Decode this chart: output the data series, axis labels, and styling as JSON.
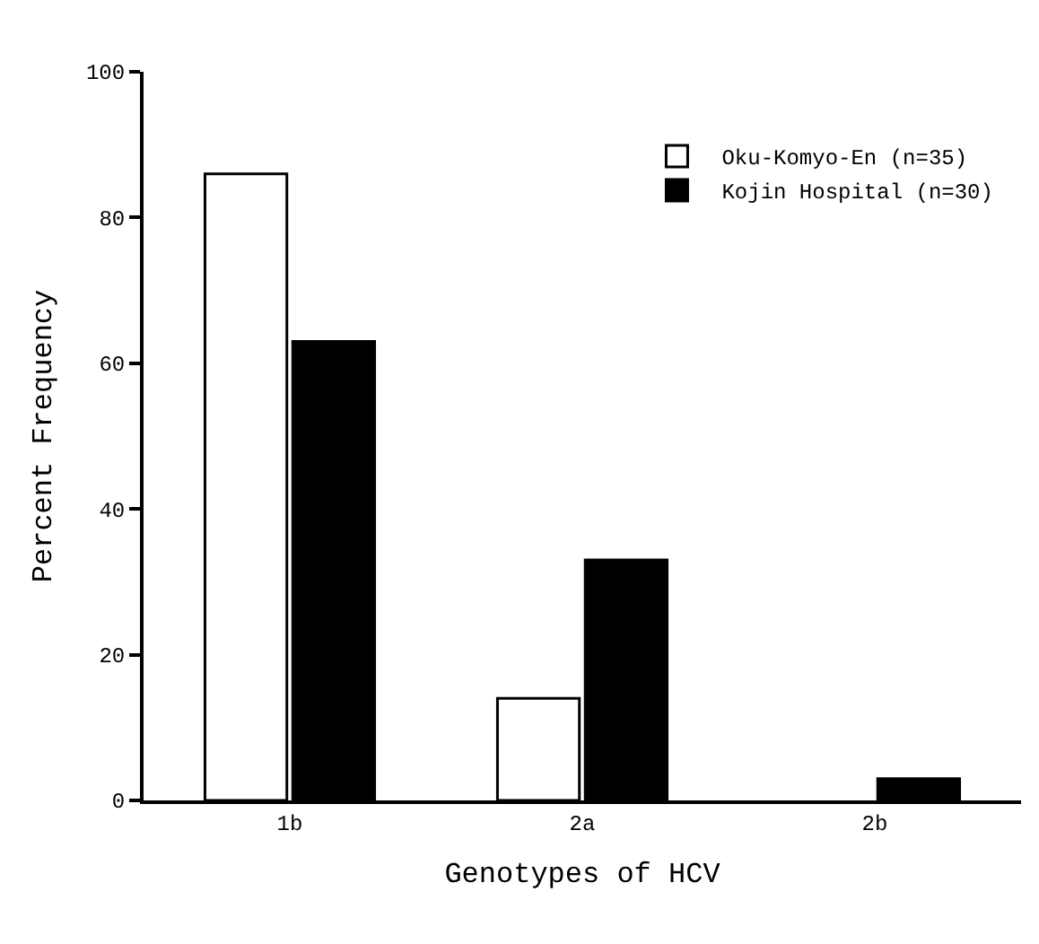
{
  "chart_data": {
    "type": "bar",
    "xlabel": "Genotypes of HCV",
    "ylabel": "Percent Frequency",
    "categories": [
      "1b",
      "2a",
      "2b"
    ],
    "series": [
      {
        "name": "Oku-Komyo-En (n=35)",
        "color": "#ffffff",
        "values": [
          86,
          14,
          0
        ]
      },
      {
        "name": "Kojin Hospital (n=30)",
        "color": "#000000",
        "values": [
          63,
          33,
          3
        ]
      }
    ],
    "ylim": [
      0,
      100
    ],
    "yticks": [
      0,
      20,
      40,
      60,
      80,
      100
    ],
    "legend": "top right"
  }
}
